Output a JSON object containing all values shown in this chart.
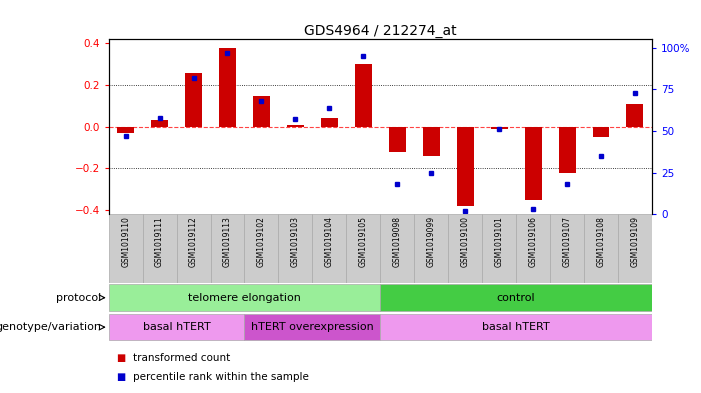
{
  "title": "GDS4964 / 212274_at",
  "samples": [
    "GSM1019110",
    "GSM1019111",
    "GSM1019112",
    "GSM1019113",
    "GSM1019102",
    "GSM1019103",
    "GSM1019104",
    "GSM1019105",
    "GSM1019098",
    "GSM1019099",
    "GSM1019100",
    "GSM1019101",
    "GSM1019106",
    "GSM1019107",
    "GSM1019108",
    "GSM1019109"
  ],
  "bar_values": [
    -0.03,
    0.03,
    0.26,
    0.38,
    0.15,
    0.01,
    0.04,
    0.3,
    -0.12,
    -0.14,
    -0.38,
    -0.01,
    -0.35,
    -0.22,
    -0.05,
    0.11
  ],
  "percentile_values": [
    47,
    58,
    82,
    97,
    68,
    57,
    64,
    95,
    18,
    25,
    2,
    51,
    3,
    18,
    35,
    73
  ],
  "ylim_left": [
    -0.42,
    0.42
  ],
  "ylim_right": [
    0,
    105
  ],
  "yticks_left": [
    -0.4,
    -0.2,
    0.0,
    0.2,
    0.4
  ],
  "yticks_right": [
    0,
    25,
    50,
    75,
    100
  ],
  "bar_color": "#cc0000",
  "dot_color": "#0000cc",
  "zero_line_color": "#ff4444",
  "grid_color": "#000000",
  "protocol_groups": [
    {
      "label": "telomere elongation",
      "start": 0,
      "end": 8,
      "color": "#99ee99"
    },
    {
      "label": "control",
      "start": 8,
      "end": 16,
      "color": "#44cc44"
    }
  ],
  "genotype_groups": [
    {
      "label": "basal hTERT",
      "start": 0,
      "end": 4,
      "color": "#ee99ee"
    },
    {
      "label": "hTERT overexpression",
      "start": 4,
      "end": 8,
      "color": "#cc55cc"
    },
    {
      "label": "basal hTERT",
      "start": 8,
      "end": 16,
      "color": "#ee99ee"
    }
  ],
  "sample_bg_color": "#cccccc",
  "legend_items": [
    {
      "color": "#cc0000",
      "label": "transformed count"
    },
    {
      "color": "#0000cc",
      "label": "percentile rank within the sample"
    }
  ]
}
